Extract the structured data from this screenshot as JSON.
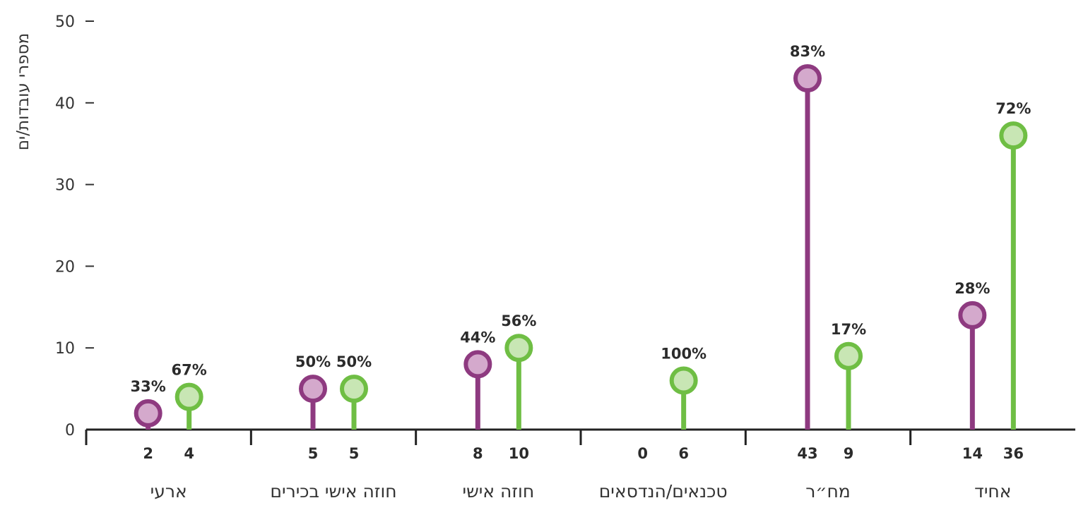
{
  "chart_data": {
    "type": "lollipop",
    "ylabel": "מספרי עובדות/ים",
    "ylim": [
      0,
      50
    ],
    "yticks": [
      0,
      10,
      20,
      30,
      40,
      50
    ],
    "categories": [
      "ארעי",
      "חוזה אישי בכירים",
      "חוזה אישי",
      "טכנאים/הנדסאים",
      "מח״ר",
      "אחיד"
    ],
    "series": [
      {
        "values": [
          2,
          5,
          8,
          0,
          43,
          14
        ],
        "percent_labels": [
          "33%",
          "50%",
          "44%",
          "",
          "83%",
          "28%"
        ],
        "color": "#8e3a80",
        "fill": "#d4a9cc"
      },
      {
        "values": [
          4,
          5,
          10,
          6,
          9,
          36
        ],
        "percent_labels": [
          "67%",
          "50%",
          "56%",
          "100%",
          "17%",
          "72%"
        ],
        "color": "#6fbe44",
        "fill": "#c8e6b4"
      }
    ],
    "grid": false
  }
}
